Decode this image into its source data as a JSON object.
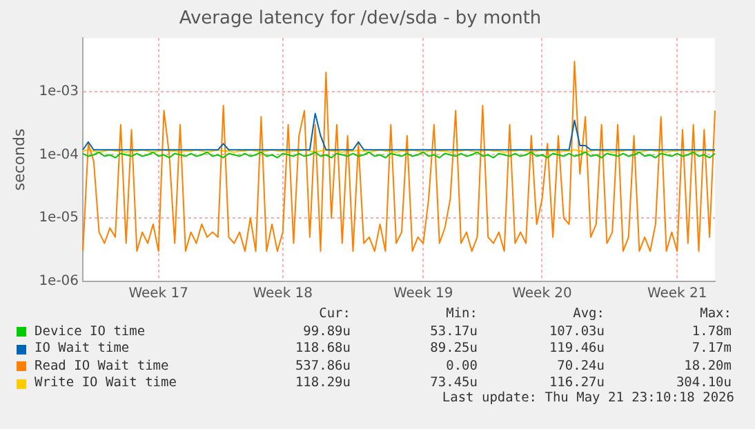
{
  "chart_data": {
    "type": "line",
    "title": "Average latency for /dev/sda - by month",
    "ylabel": "seconds",
    "log": "y",
    "grid": true,
    "legend": "bottom",
    "categories": [
      null,
      null,
      null,
      null,
      null,
      null,
      null,
      null,
      null,
      null,
      null,
      null,
      null,
      null,
      "Week 17",
      null,
      null,
      null,
      null,
      null,
      null,
      null,
      null,
      null,
      null,
      null,
      null,
      null,
      null,
      null,
      null,
      null,
      null,
      null,
      null,
      null,
      null,
      "Week 18",
      null,
      null,
      null,
      null,
      null,
      null,
      null,
      null,
      null,
      null,
      null,
      null,
      null,
      null,
      null,
      null,
      null,
      null,
      null,
      null,
      null,
      null,
      null,
      null,
      null,
      "Week 19",
      null,
      null,
      null,
      null,
      null,
      null,
      null,
      null,
      null,
      null,
      null,
      null,
      null,
      null,
      null,
      null,
      null,
      null,
      null,
      null,
      null,
      "Week 20",
      null,
      null,
      null,
      null,
      null,
      null,
      null,
      null,
      null,
      null,
      null,
      null,
      null,
      null,
      null,
      null,
      null,
      null,
      null,
      null,
      null,
      null,
      null,
      null,
      "Week 21",
      null,
      null,
      null,
      null,
      null,
      null,
      null
    ],
    "ylim": [
      1e-06,
      0.007
    ],
    "yticks": [
      {
        "value": 1e-06,
        "label": "1e-06"
      },
      {
        "value": 1e-05,
        "label": "1e-05"
      },
      {
        "value": 0.0001,
        "label": "1e-04"
      },
      {
        "value": 0.001,
        "label": "1e-03"
      }
    ],
    "series": [
      {
        "name": "Device IO time",
        "color": "#00cc00",
        "values": [
          0.000105,
          9.5e-05,
          0.0001,
          0.00011,
          9.5e-05,
          0.0001,
          9e-05,
          0.000105,
          0.0001,
          9.5e-05,
          0.000105,
          9.5e-05,
          0.0001,
          0.00011,
          9.5e-05,
          0.0001,
          9e-05,
          0.000105,
          0.0001,
          9.5e-05,
          0.000105,
          9.5e-05,
          0.0001,
          0.00011,
          9.5e-05,
          0.0001,
          9e-05,
          0.000105,
          0.0001,
          9.5e-05,
          0.000105,
          9.5e-05,
          0.0001,
          0.00011,
          9.5e-05,
          0.0001,
          9e-05,
          0.000105,
          0.0001,
          9.5e-05,
          0.000105,
          9.5e-05,
          0.0001,
          0.00011,
          9.5e-05,
          0.0001,
          9e-05,
          0.000105,
          0.0001,
          9.5e-05,
          0.000105,
          9.5e-05,
          0.0001,
          0.00011,
          9.5e-05,
          0.0001,
          9e-05,
          0.000105,
          0.0001,
          9.5e-05,
          0.000105,
          9.5e-05,
          0.0001,
          0.00011,
          9.5e-05,
          0.0001,
          9e-05,
          0.000105,
          0.0001,
          9.5e-05,
          0.000105,
          9.5e-05,
          0.0001,
          0.00011,
          9.5e-05,
          0.0001,
          9e-05,
          0.000105,
          0.0001,
          9.5e-05,
          0.000105,
          9.5e-05,
          0.0001,
          0.00011,
          9.5e-05,
          0.0001,
          9e-05,
          0.000105,
          0.0001,
          9.5e-05,
          0.000105,
          9.5e-05,
          0.0001,
          0.00011,
          9.5e-05,
          0.0001,
          9e-05,
          0.000105,
          0.0001,
          9.5e-05,
          0.000105,
          9.5e-05,
          0.0001,
          0.00011,
          9.5e-05,
          0.0001,
          9e-05,
          0.000105,
          0.0001,
          9.5e-05,
          0.000105,
          9.5e-05,
          0.0001,
          0.00011,
          9.5e-05,
          0.0001,
          9e-05,
          0.000105
        ]
      },
      {
        "name": "IO Wait time",
        "color": "#0066b3",
        "values": [
          0.00012,
          0.00016,
          0.00012,
          0.00012,
          0.00012,
          0.00012,
          0.00012,
          0.00012,
          0.00012,
          0.00012,
          0.00012,
          0.00012,
          0.00012,
          0.00012,
          0.00012,
          0.00012,
          0.00012,
          0.00012,
          0.00012,
          0.00012,
          0.00012,
          0.00012,
          0.00012,
          0.00012,
          0.00012,
          0.00012,
          0.00015,
          0.00012,
          0.00012,
          0.00012,
          0.00012,
          0.00012,
          0.00012,
          0.00012,
          0.00012,
          0.00012,
          0.00012,
          0.00012,
          0.00012,
          0.00012,
          0.00012,
          0.00012,
          0.00012,
          0.00045,
          0.0002,
          0.00012,
          0.00012,
          0.00012,
          0.00012,
          0.00012,
          0.00012,
          0.00016,
          0.00012,
          0.00012,
          0.00012,
          0.00012,
          0.00012,
          0.00012,
          0.00012,
          0.00012,
          0.00012,
          0.00012,
          0.00012,
          0.00012,
          0.00012,
          0.00012,
          0.00012,
          0.00012,
          0.00012,
          0.00012,
          0.00012,
          0.00012,
          0.00012,
          0.00012,
          0.00012,
          0.00012,
          0.00012,
          0.00012,
          0.00012,
          0.00012,
          0.00012,
          0.00012,
          0.00012,
          0.00012,
          0.00012,
          0.00012,
          0.00012,
          0.00012,
          0.00012,
          0.00012,
          0.00012,
          0.00035,
          0.00014,
          0.00014,
          0.00012,
          0.00012,
          0.00012,
          0.00012,
          0.00012,
          0.00012,
          0.00012,
          0.00012,
          0.00012,
          0.00012,
          0.00012,
          0.00012,
          0.00012,
          0.00012,
          0.00012,
          0.00012,
          0.00012,
          0.00012,
          0.00012,
          0.00012,
          0.00012,
          0.00012,
          0.00012,
          0.00012
        ]
      },
      {
        "name": "Read IO Wait time",
        "color": "#ff8000",
        "values": [
          3e-06,
          0.00015,
          8e-05,
          6e-06,
          4e-06,
          7e-06,
          5e-06,
          0.0003,
          4e-06,
          0.00025,
          3e-06,
          6e-06,
          4e-06,
          8e-06,
          3e-06,
          0.0005,
          0.0001,
          4e-06,
          0.0003,
          3e-06,
          6e-06,
          4e-06,
          8e-06,
          5e-06,
          6e-06,
          5e-06,
          0.0006,
          5e-06,
          4e-06,
          6e-06,
          3e-06,
          1e-05,
          3e-06,
          0.0004,
          3e-06,
          8e-06,
          3e-06,
          6e-06,
          0.0003,
          4e-06,
          0.0002,
          0.0005,
          5e-06,
          0.0003,
          3e-06,
          0.002,
          1e-05,
          0.0003,
          4e-06,
          0.0002,
          3e-06,
          0.00015,
          4e-06,
          5e-06,
          3e-06,
          8e-06,
          3e-06,
          0.0003,
          4e-06,
          6e-06,
          0.0002,
          3e-06,
          5e-06,
          4e-06,
          2e-05,
          0.0003,
          4e-06,
          7e-06,
          2e-05,
          0.0005,
          4e-06,
          6e-06,
          3e-06,
          5e-06,
          0.0006,
          5e-06,
          4e-06,
          6e-06,
          3e-06,
          0.0003,
          4e-06,
          6e-06,
          4e-06,
          0.0002,
          8e-06,
          2e-05,
          0.00015,
          5e-06,
          0.0002,
          1e-05,
          8e-06,
          0.003,
          5e-05,
          0.0004,
          5e-06,
          8e-06,
          0.0003,
          4e-06,
          6e-06,
          0.0003,
          3e-06,
          5e-06,
          0.0002,
          3e-06,
          5e-06,
          3e-06,
          8e-06,
          0.0004,
          3e-06,
          6e-06,
          3e-06,
          0.00025,
          4e-06,
          0.0003,
          3e-06,
          0.00025,
          5e-06,
          0.0005
        ]
      },
      {
        "name": "Write IO Wait time",
        "color": "#ffcc00",
        "values": [
          0.000115,
          0.00012,
          0.000115,
          0.00011,
          0.000115,
          0.00012,
          0.000115,
          0.000115,
          0.00011,
          0.000115,
          0.000115,
          0.00012,
          0.000115,
          0.00011,
          0.000115,
          0.00012,
          0.000115,
          0.000115,
          0.00011,
          0.000115,
          0.000115,
          0.00012,
          0.000115,
          0.00011,
          0.000115,
          0.00012,
          0.000115,
          0.000115,
          0.00011,
          0.000115,
          0.000115,
          0.00012,
          0.000115,
          0.00011,
          0.000115,
          0.00012,
          0.000115,
          0.000115,
          0.00011,
          0.000115,
          0.000115,
          0.00012,
          0.000115,
          0.00011,
          0.000115,
          0.00012,
          0.000115,
          0.000115,
          0.00011,
          0.000115,
          0.000115,
          0.00012,
          0.000115,
          0.00011,
          0.000115,
          0.00012,
          0.000115,
          0.000115,
          0.00011,
          0.000115,
          0.000115,
          0.00012,
          0.000115,
          0.00011,
          0.000115,
          0.00012,
          0.000115,
          0.000115,
          0.00011,
          0.000115,
          0.000115,
          0.00012,
          0.000115,
          0.00011,
          0.000115,
          0.00012,
          0.000115,
          0.000115,
          0.00011,
          0.000115,
          0.000115,
          0.00012,
          0.000115,
          0.00011,
          0.000115,
          0.00012,
          0.000115,
          0.000115,
          0.00011,
          0.000115,
          0.000115,
          0.00012,
          0.000115,
          0.00011,
          0.000115,
          0.00012,
          0.000115,
          0.000115,
          0.00011,
          0.000115,
          0.000115,
          0.00012,
          0.000115,
          0.00011,
          0.000115,
          0.00012,
          0.000115,
          0.000115,
          0.00011,
          0.000115,
          0.000115,
          0.00012,
          0.000115,
          0.00011,
          0.000115,
          0.00012,
          0.000115,
          0.000115
        ]
      }
    ],
    "annotations": [
      "Cur:",
      "Min:",
      "Avg:",
      "Max:",
      "99.89u",
      "53.17u",
      "107.03u",
      "1.78m",
      "118.68u",
      "89.25u",
      "119.46u",
      "7.17m",
      "537.86u",
      "0.00",
      "70.24u",
      "18.20m",
      "118.29u",
      "73.45u",
      "116.27u",
      "304.10u",
      "Last update: Thu May 21 23:10:18 2026"
    ]
  }
}
